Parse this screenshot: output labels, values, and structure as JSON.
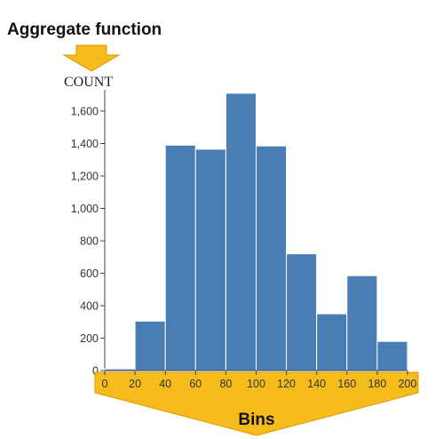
{
  "annotations": {
    "aggregate_title": "Aggregate function",
    "aggregate_value": "COUNT",
    "bins_label": "Bins",
    "arrow_color": "#f5bc1c"
  },
  "chart_data": {
    "type": "bar",
    "bin_edges": [
      0,
      20,
      40,
      60,
      80,
      100,
      120,
      140,
      160,
      180,
      200
    ],
    "values": [
      10,
      305,
      1390,
      1365,
      1710,
      1385,
      720,
      350,
      585,
      180
    ],
    "ylabel": "COUNT",
    "xlabel": "",
    "ylim": [
      0,
      1700
    ],
    "xlim": [
      0,
      200
    ],
    "yticks": [
      0,
      200,
      400,
      600,
      800,
      1000,
      1200,
      1400,
      1600
    ],
    "ytick_labels": [
      "0",
      "200",
      "400",
      "600",
      "800",
      "1,000",
      "1,200",
      "1,400",
      "1,600"
    ],
    "xticks": [
      0,
      20,
      40,
      60,
      80,
      100,
      120,
      140,
      160,
      180,
      200
    ],
    "xtick_labels": [
      "0",
      "20",
      "40",
      "60",
      "80",
      "100",
      "120",
      "140",
      "160",
      "180",
      "200"
    ],
    "bar_color": "#4a7db3",
    "grid": false
  }
}
